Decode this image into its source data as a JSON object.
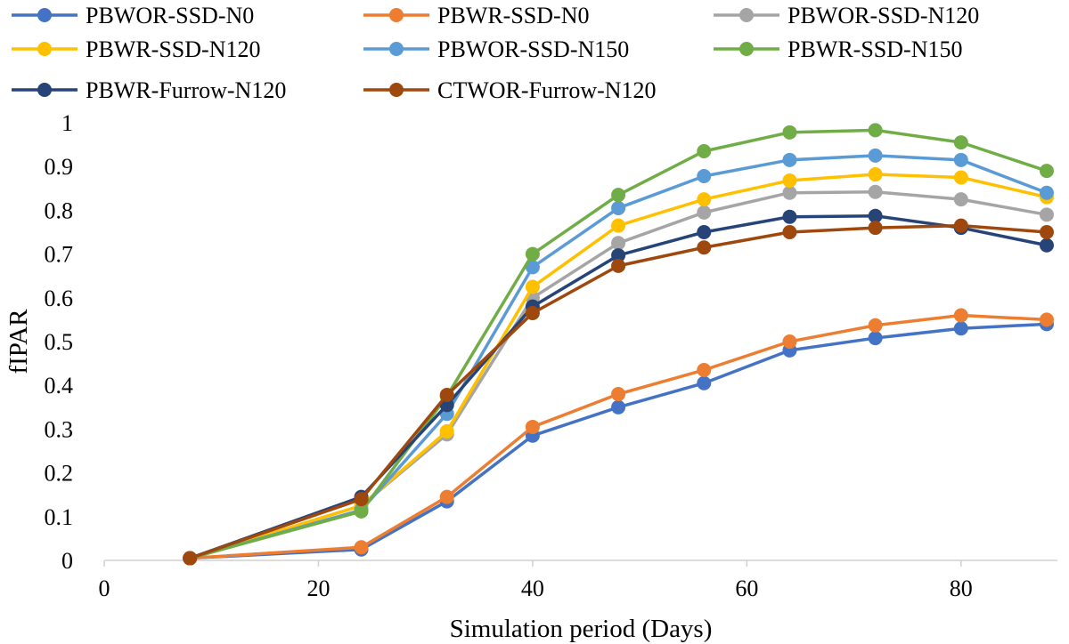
{
  "chart_data": {
    "type": "line",
    "title": "",
    "xlabel": "Simulation period (Days)",
    "ylabel": "fIPAR",
    "xlim": [
      0,
      89
    ],
    "ylim": [
      0,
      1
    ],
    "xticks": [
      0,
      20,
      40,
      60,
      80
    ],
    "yticks": [
      0,
      0.1,
      0.2,
      0.3,
      0.4,
      0.5,
      0.6,
      0.7,
      0.8,
      0.9,
      1
    ],
    "ytick_labels": [
      "0",
      "0.1",
      "0.2",
      "0.3",
      "0.4",
      "0.5",
      "0.6",
      "0.7",
      "0.8",
      "0.9",
      "1"
    ],
    "grid": false,
    "legend_position": "top",
    "x": [
      8,
      24,
      32,
      40,
      48,
      56,
      64,
      72,
      80,
      88
    ],
    "series": [
      {
        "name": "PBWOR-SSD-N0",
        "color": "#4472C4",
        "values": [
          0.005,
          0.025,
          0.135,
          0.285,
          0.35,
          0.405,
          0.48,
          0.508,
          0.53,
          0.54
        ]
      },
      {
        "name": "PBWR-SSD-N0",
        "color": "#ED7D31",
        "values": [
          0.005,
          0.03,
          0.145,
          0.305,
          0.38,
          0.435,
          0.5,
          0.537,
          0.56,
          0.55
        ]
      },
      {
        "name": "PBWOR-SSD-N120",
        "color": "#A5A5A5",
        "values": [
          0.005,
          0.125,
          0.288,
          0.6,
          0.725,
          0.795,
          0.84,
          0.842,
          0.825,
          0.79
        ]
      },
      {
        "name": "PBWR-SSD-N120",
        "color": "#FFC000",
        "values": [
          0.005,
          0.125,
          0.295,
          0.625,
          0.765,
          0.825,
          0.868,
          0.882,
          0.875,
          0.83
        ]
      },
      {
        "name": "PBWOR-SSD-N150",
        "color": "#5B9BD5",
        "values": [
          0.005,
          0.115,
          0.335,
          0.67,
          0.805,
          0.878,
          0.915,
          0.925,
          0.915,
          0.84
        ]
      },
      {
        "name": "PBWR-SSD-N150",
        "color": "#70AD47",
        "values": [
          0.005,
          0.112,
          0.375,
          0.7,
          0.835,
          0.935,
          0.978,
          0.983,
          0.955,
          0.89
        ]
      },
      {
        "name": "PBWR-Furrow-N120",
        "color": "#264478",
        "values": [
          0.005,
          0.145,
          0.355,
          0.58,
          0.697,
          0.75,
          0.785,
          0.787,
          0.76,
          0.72
        ]
      },
      {
        "name": "CTWOR-Furrow-N120",
        "color": "#9E480E",
        "values": [
          0.005,
          0.14,
          0.378,
          0.565,
          0.673,
          0.715,
          0.75,
          0.76,
          0.765,
          0.75
        ]
      }
    ]
  }
}
